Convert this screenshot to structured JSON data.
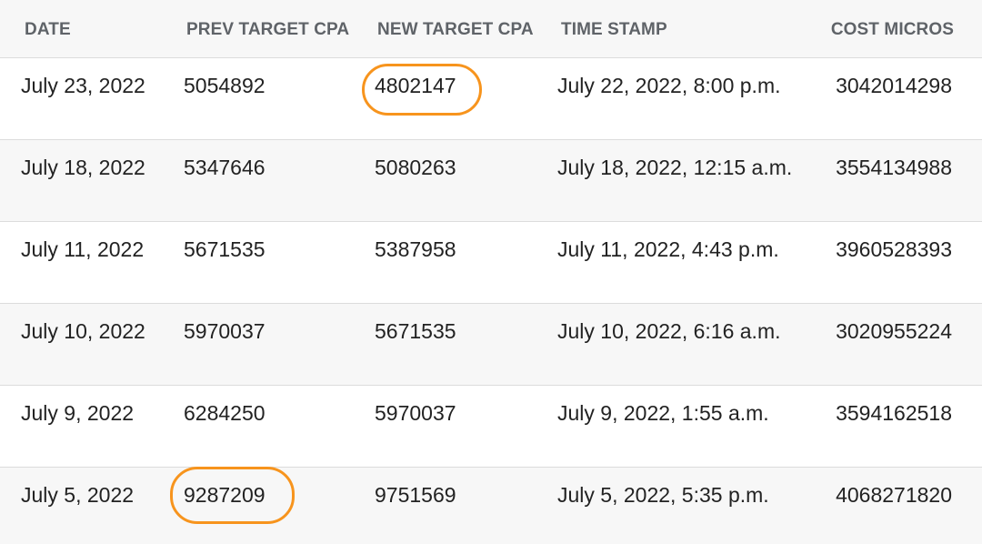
{
  "table": {
    "headers": {
      "date": "DATE",
      "prev": "PREV TARGET CPA",
      "new": "NEW TARGET CPA",
      "timestamp": "TIME STAMP",
      "cost": "COST MICROS"
    },
    "rows": [
      {
        "date": "July 23, 2022",
        "prev": "5054892",
        "new": "4802147",
        "timestamp": "July 22, 2022, 8:00 p.m.",
        "cost": "3042014298"
      },
      {
        "date": "July 18, 2022",
        "prev": "5347646",
        "new": "5080263",
        "timestamp": "July 18, 2022, 12:15 a.m.",
        "cost": "3554134988"
      },
      {
        "date": "July 11, 2022",
        "prev": "5671535",
        "new": "5387958",
        "timestamp": "July 11, 2022, 4:43 p.m.",
        "cost": "3960528393"
      },
      {
        "date": "July 10, 2022",
        "prev": "5970037",
        "new": "5671535",
        "timestamp": "July 10, 2022, 6:16 a.m.",
        "cost": "3020955224"
      },
      {
        "date": "July 9, 2022",
        "prev": "6284250",
        "new": "5970037",
        "timestamp": "July 9, 2022, 1:55 a.m.",
        "cost": "3594162518"
      },
      {
        "date": "July 5, 2022",
        "prev": "9287209",
        "new": "9751569",
        "timestamp": "July 5, 2022, 5:35 p.m.",
        "cost": "4068271820"
      }
    ]
  },
  "annotations": {
    "highlight_color": "#f7941d",
    "highlighted_cells": [
      "rows.0.new",
      "rows.5.prev"
    ]
  }
}
